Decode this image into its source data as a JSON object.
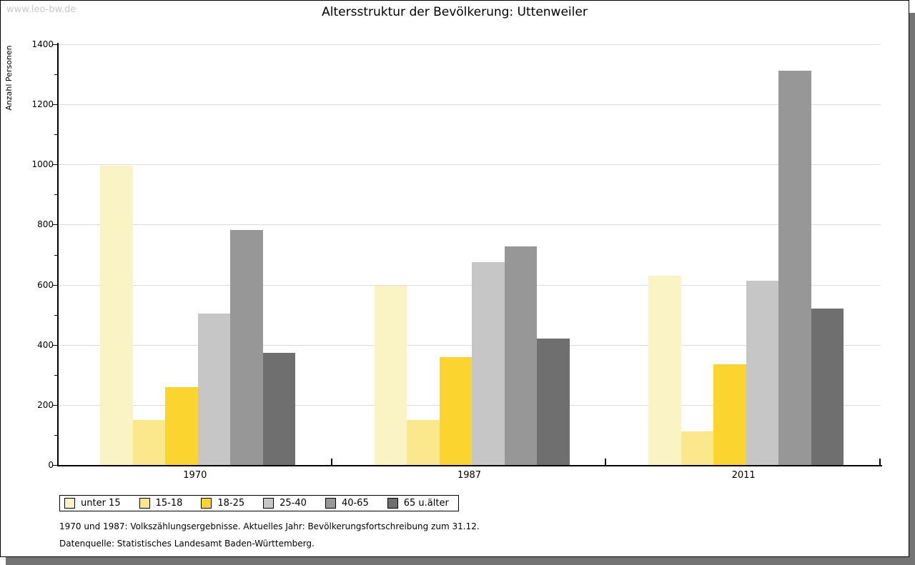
{
  "watermark": "www.leo-bw.de",
  "chart_data": {
    "type": "bar",
    "title": "Altersstruktur der Bevölkerung: Uttenweiler",
    "ylabel": "Anzahl Personen",
    "categories": [
      "1970",
      "1987",
      "2011"
    ],
    "series": [
      {
        "name": "unter 15",
        "color": "#FAF4C4",
        "values": [
          995,
          596,
          630
        ]
      },
      {
        "name": "15-18",
        "color": "#FCE88C",
        "values": [
          150,
          149,
          112
        ]
      },
      {
        "name": "18-25",
        "color": "#FCD42F",
        "values": [
          259,
          358,
          336
        ]
      },
      {
        "name": "25-40",
        "color": "#C6C6C6",
        "values": [
          503,
          675,
          614
        ]
      },
      {
        "name": "40-65",
        "color": "#979797",
        "values": [
          783,
          728,
          1311
        ]
      },
      {
        "name": "65 u.älter",
        "color": "#6F6F6F",
        "values": [
          372,
          420,
          521
        ]
      }
    ],
    "ylim": [
      0,
      1400
    ],
    "ytick_step": 200,
    "yminor_step": 100,
    "grid": true,
    "legend_position": "bottom",
    "axis_color": "#000000",
    "grid_color": "#DCDCDC"
  },
  "footnotes": [
    "1970 und 1987: Volkszählungsergebnisse. Aktuelles Jahr: Bevölkerungsfortschreibung zum 31.12.",
    "Datenquelle: Statistisches Landesamt Baden-Württemberg."
  ]
}
